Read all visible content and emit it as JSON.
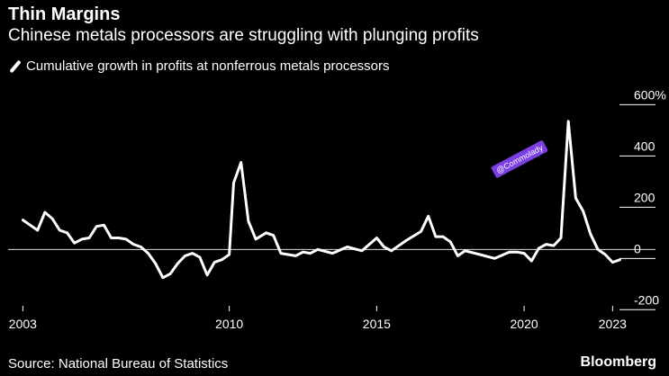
{
  "title": "Thin Margins",
  "subtitle": "Chinese metals processors are struggling with plunging profits",
  "source": "Source: National Bureau of Statistics",
  "brand": "Bloomberg",
  "watermark": "@Commolady",
  "colors": {
    "background": "#000000",
    "line": "#ffffff",
    "watermark": "#7b3fe4"
  },
  "chart_data": {
    "type": "line",
    "series": [
      {
        "name": "Cumulative growth in profits at nonferrous metals processors",
        "x": [
          2003.0,
          2003.25,
          2003.5,
          2003.75,
          2004.0,
          2004.25,
          2004.5,
          2004.75,
          2005.0,
          2005.25,
          2005.5,
          2005.75,
          2006.0,
          2006.25,
          2006.5,
          2006.75,
          2007.0,
          2007.25,
          2007.5,
          2007.75,
          2008.0,
          2008.25,
          2008.5,
          2008.75,
          2009.0,
          2009.25,
          2009.5,
          2009.75,
          2010.0,
          2010.15,
          2010.4,
          2010.65,
          2010.9,
          2011.25,
          2011.5,
          2011.75,
          2012.0,
          2012.25,
          2012.5,
          2012.75,
          2013.0,
          2013.5,
          2014.0,
          2014.5,
          2015.0,
          2015.25,
          2015.5,
          2016.0,
          2016.5,
          2016.75,
          2017.0,
          2017.25,
          2017.5,
          2017.75,
          2018.0,
          2018.5,
          2019.0,
          2019.5,
          2019.75,
          2020.0,
          2020.25,
          2020.5,
          2020.75,
          2021.0,
          2021.25,
          2021.5,
          2021.75,
          2022.0,
          2022.25,
          2022.5,
          2022.75,
          2023.0,
          2023.25
        ],
        "y": [
          115,
          95,
          75,
          145,
          120,
          75,
          65,
          25,
          40,
          45,
          90,
          95,
          45,
          45,
          40,
          20,
          10,
          -15,
          -55,
          -110,
          -95,
          -55,
          -25,
          -15,
          -30,
          -100,
          -50,
          -40,
          -20,
          260,
          340,
          110,
          40,
          65,
          55,
          -15,
          -20,
          -25,
          -10,
          -15,
          0,
          -15,
          10,
          -5,
          45,
          10,
          -5,
          35,
          70,
          130,
          50,
          50,
          30,
          -25,
          -5,
          -20,
          -35,
          -10,
          -10,
          -15,
          -45,
          5,
          20,
          15,
          45,
          500,
          200,
          150,
          60,
          0,
          -20,
          -50,
          -40
        ]
      }
    ],
    "xlim": [
      2002.5,
      2023.6
    ],
    "ylim": [
      -220,
      640
    ],
    "xticks": [
      2003,
      2010,
      2015,
      2020,
      2023
    ],
    "xtick_labels": [
      "2003",
      "2010",
      "2015",
      "2020",
      "2023"
    ],
    "yticks": [
      600,
      400,
      200,
      0,
      -200
    ],
    "ytick_labels": [
      "600%",
      "400",
      "200",
      "0",
      "-200"
    ],
    "zero_line": true,
    "grid": false,
    "legend_position": "top-left"
  }
}
